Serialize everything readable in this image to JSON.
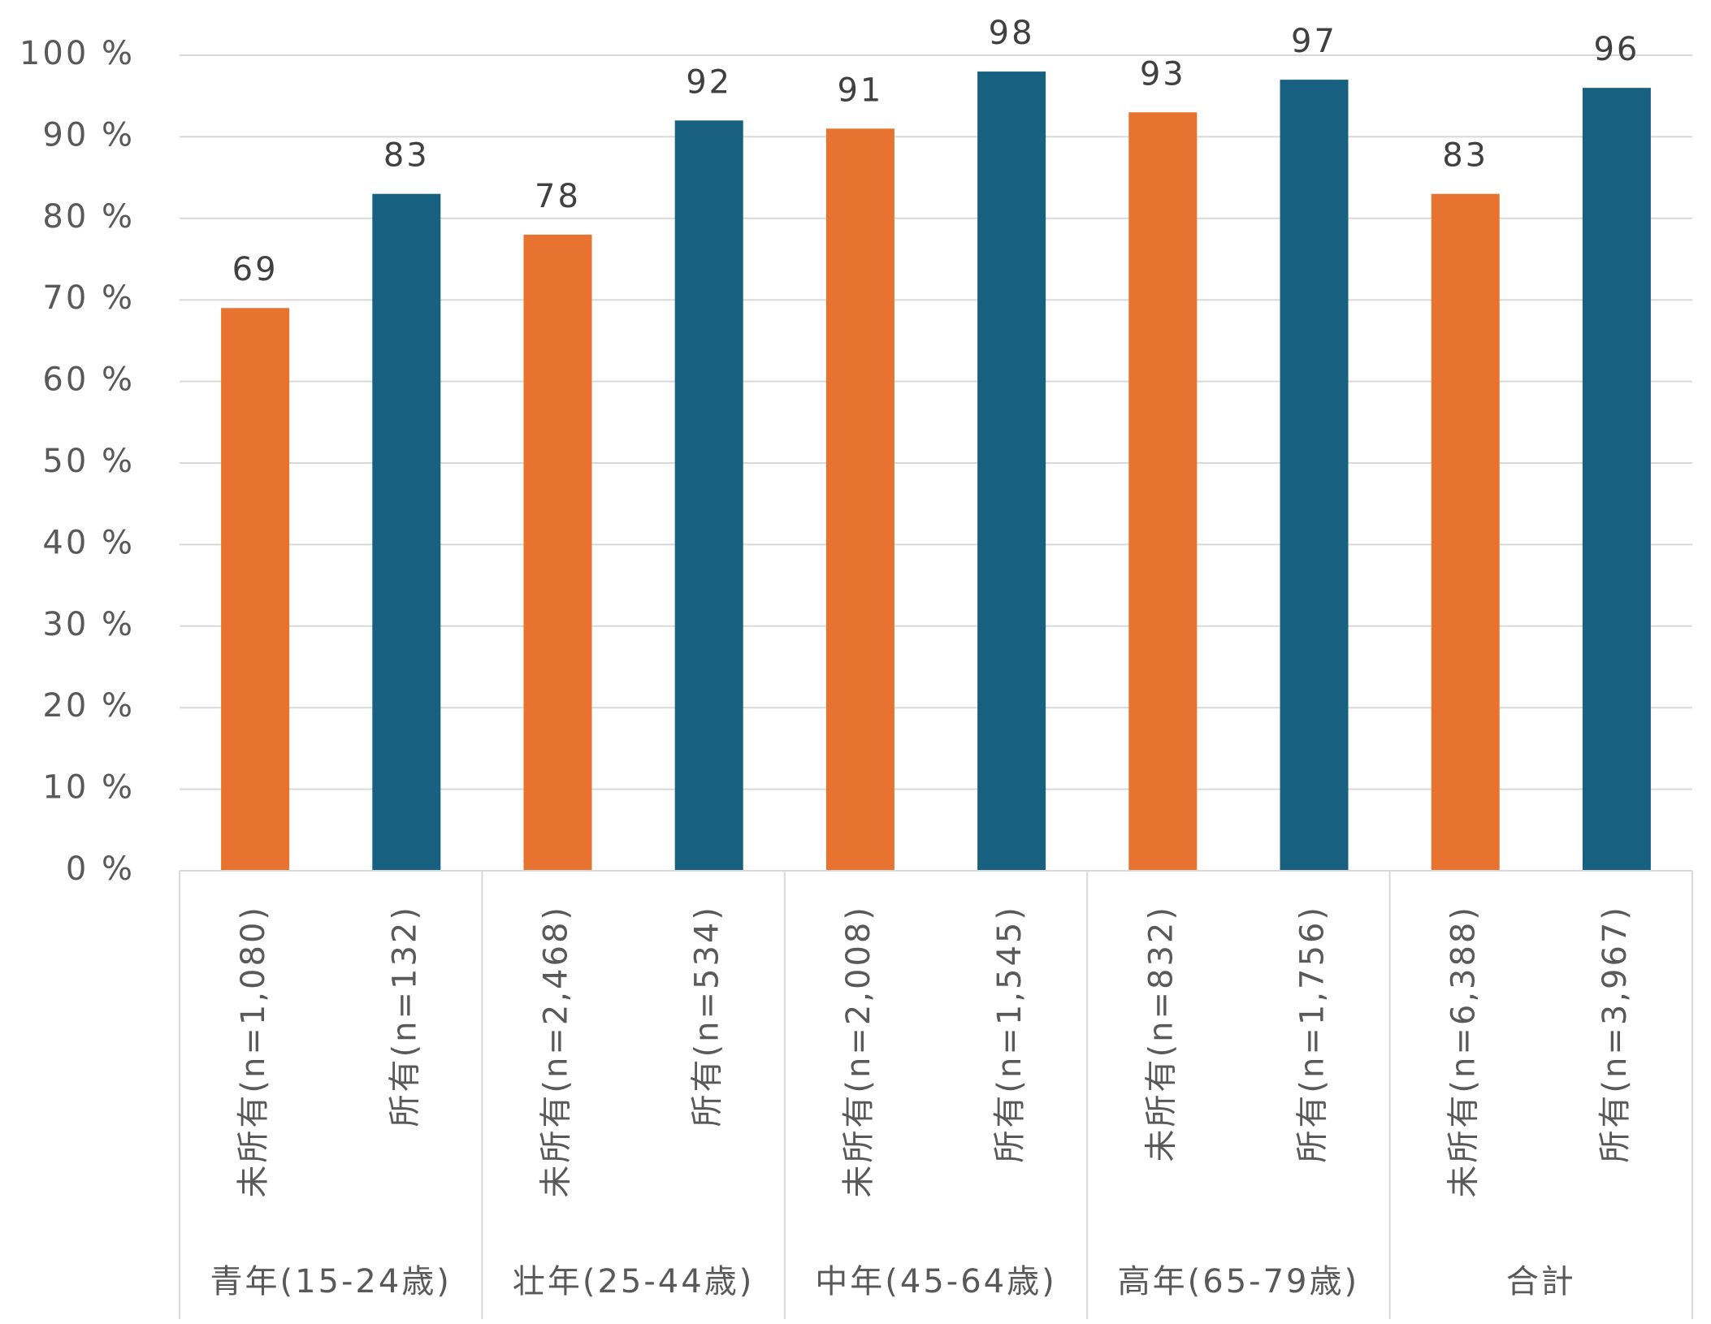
{
  "chart_data": {
    "type": "bar",
    "categories": [
      "未所有(n=1,080)",
      "所有(n=132)",
      "未所有(n=2,468)",
      "所有(n=534)",
      "未所有(n=2,008)",
      "所有(n=1,545)",
      "未所有(n=832)",
      "所有(n=1,756)",
      "未所有(n=6,388)",
      "所有(n=3,967)"
    ],
    "groups": [
      "青年(15-24歳)",
      "壮年(25-44歳)",
      "中年(45-64歳)",
      "高年(65-79歳)",
      "合計"
    ],
    "values": [
      69,
      83,
      78,
      92,
      91,
      98,
      93,
      97,
      83,
      96
    ],
    "colors": [
      "#e87230",
      "#17607f",
      "#e87230",
      "#17607f",
      "#e87230",
      "#17607f",
      "#e87230",
      "#17607f",
      "#e87230",
      "#17607f"
    ],
    "ylim": [
      0,
      100
    ],
    "yticks": [
      {
        "value": 0,
        "label": "0 %"
      },
      {
        "value": 10,
        "label": "10 %"
      },
      {
        "value": 20,
        "label": "20 %"
      },
      {
        "value": 30,
        "label": "30 %"
      },
      {
        "value": 40,
        "label": "40 %"
      },
      {
        "value": 50,
        "label": "50 %"
      },
      {
        "value": 60,
        "label": "60 %"
      },
      {
        "value": 70,
        "label": "70 %"
      },
      {
        "value": 80,
        "label": "80 %"
      },
      {
        "value": 90,
        "label": "90 %"
      },
      {
        "value": 100,
        "label": "100 %"
      }
    ],
    "grid": true
  }
}
